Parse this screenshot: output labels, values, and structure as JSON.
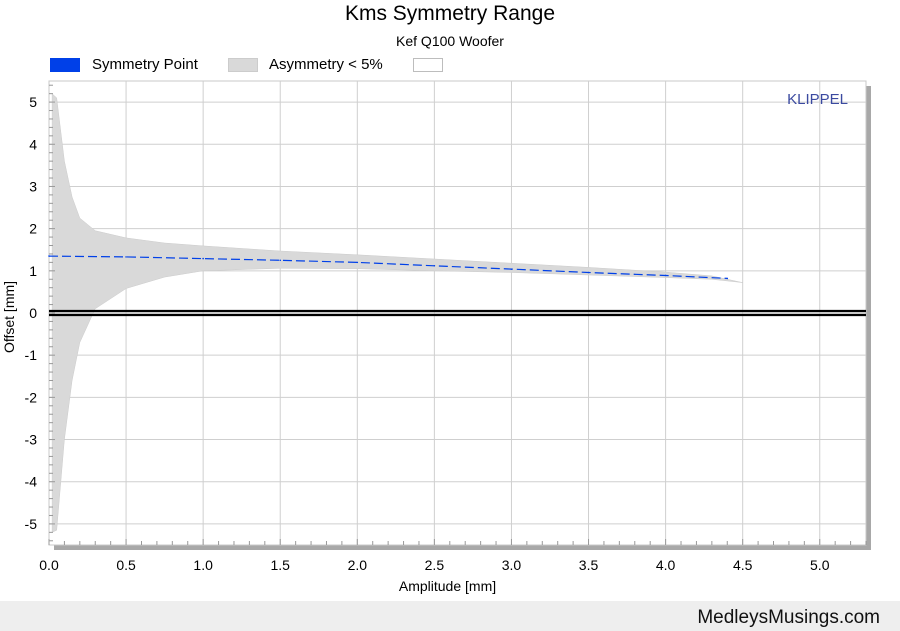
{
  "chart_data": {
    "type": "area",
    "title": "Kms Symmetry Range",
    "subtitle": "Kef Q100 Woofer",
    "xlabel": "Amplitude [mm]",
    "ylabel": "Offset [mm]",
    "xlim": [
      0,
      5.3
    ],
    "ylim": [
      -5.5,
      5.5
    ],
    "xticks": [
      "0.0",
      "0.5",
      "1.0",
      "1.5",
      "2.0",
      "2.5",
      "3.0",
      "3.5",
      "4.0",
      "4.5",
      "5.0"
    ],
    "xtick_values": [
      0,
      0.5,
      1.0,
      1.5,
      2.0,
      2.5,
      3.0,
      3.5,
      4.0,
      4.5,
      5.0
    ],
    "yticks": [
      "5",
      "4",
      "3",
      "2",
      "1",
      "0",
      "-1",
      "-2",
      "-3",
      "-4",
      "-5"
    ],
    "ytick_values": [
      5,
      4,
      3,
      2,
      1,
      0,
      -1,
      -2,
      -3,
      -4,
      -5
    ],
    "grid": true,
    "legend_position": "top-left",
    "watermark": "KLIPPEL",
    "series": [
      {
        "name": "Symmetry Point",
        "color": "#0040e8",
        "style": "dashed",
        "x": [
          0.0,
          0.5,
          1.0,
          1.5,
          2.0,
          2.5,
          3.0,
          3.5,
          4.0,
          4.4
        ],
        "values": [
          1.35,
          1.33,
          1.29,
          1.25,
          1.2,
          1.12,
          1.04,
          0.96,
          0.89,
          0.82
        ]
      },
      {
        "name": "Asymmetry < 5%",
        "color": "#d9d9d9",
        "x": [
          0.02,
          0.05,
          0.1,
          0.15,
          0.2,
          0.3,
          0.5,
          0.75,
          1.0,
          1.5,
          2.0,
          2.5,
          3.0,
          3.5,
          4.0,
          4.3,
          4.5
        ],
        "upper": [
          5.2,
          5.1,
          3.6,
          2.75,
          2.25,
          1.95,
          1.78,
          1.66,
          1.59,
          1.47,
          1.38,
          1.28,
          1.18,
          1.08,
          0.97,
          0.88,
          0.72
        ],
        "lower": [
          -5.2,
          -5.15,
          -3.0,
          -1.6,
          -0.7,
          0.1,
          0.58,
          0.85,
          1.0,
          1.06,
          1.05,
          1.0,
          0.96,
          0.9,
          0.84,
          0.8,
          0.72
        ]
      },
      {
        "name": "",
        "color": "#ffffff",
        "x": [],
        "values": []
      }
    ],
    "zero_line": 0
  },
  "footer": {
    "brand": "MedleysMusings.com"
  }
}
